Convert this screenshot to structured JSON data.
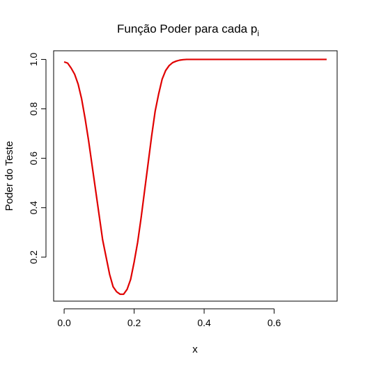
{
  "chart_data": {
    "type": "line",
    "title": "Função Poder para cada p",
    "title_subscript": "i",
    "xlabel": "x",
    "ylabel": "Poder do Teste",
    "xlim": [
      -0.03,
      0.78
    ],
    "ylim": [
      0.022,
      1.035
    ],
    "x_ticks": [
      0.0,
      0.2,
      0.4,
      0.6
    ],
    "x_tick_labels": [
      "0.0",
      "0.2",
      "0.4",
      "0.6"
    ],
    "y_ticks": [
      0.2,
      0.4,
      0.6,
      0.8,
      1.0
    ],
    "y_tick_labels": [
      "0.2",
      "0.4",
      "0.6",
      "0.8",
      "1.0"
    ],
    "grid": false,
    "series": [
      {
        "color": "#e00000",
        "x": [
          0.0,
          0.01,
          0.02,
          0.03,
          0.04,
          0.05,
          0.06,
          0.07,
          0.08,
          0.09,
          0.1,
          0.11,
          0.12,
          0.13,
          0.14,
          0.15,
          0.16,
          0.17,
          0.18,
          0.19,
          0.2,
          0.21,
          0.22,
          0.23,
          0.24,
          0.25,
          0.26,
          0.27,
          0.28,
          0.29,
          0.3,
          0.31,
          0.32,
          0.33,
          0.34,
          0.35,
          0.36,
          0.37,
          0.4,
          0.45,
          0.5,
          0.55,
          0.6,
          0.65,
          0.7,
          0.75
        ],
        "y": [
          0.99,
          0.985,
          0.965,
          0.94,
          0.9,
          0.84,
          0.76,
          0.67,
          0.57,
          0.47,
          0.37,
          0.27,
          0.2,
          0.13,
          0.08,
          0.06,
          0.05,
          0.05,
          0.07,
          0.11,
          0.18,
          0.26,
          0.36,
          0.47,
          0.58,
          0.69,
          0.79,
          0.86,
          0.92,
          0.955,
          0.975,
          0.987,
          0.993,
          0.997,
          0.999,
          1.0,
          1.0,
          1.0,
          1.0,
          1.0,
          1.0,
          1.0,
          1.0,
          1.0,
          1.0,
          1.0
        ]
      }
    ]
  }
}
